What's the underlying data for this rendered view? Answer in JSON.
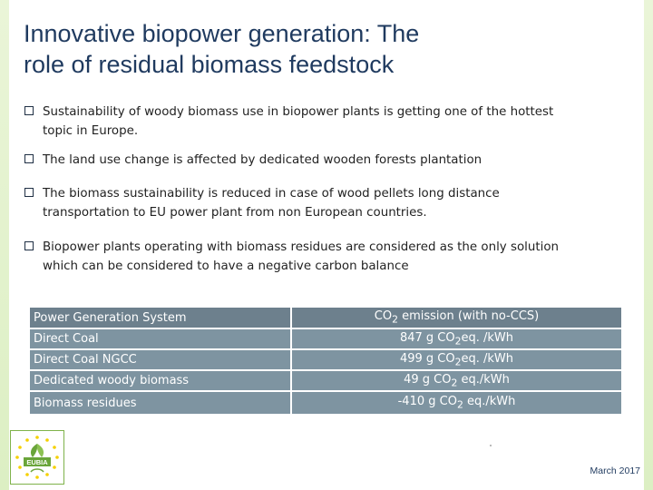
{
  "slide": {
    "title_line1": "Innovative biopower generation: The",
    "title_line2": "role of residual biomass feedstock",
    "bullets": [
      {
        "line1": "Sustainability of woody biomass use in biopower plants is getting one of the hottest",
        "line2": "topic in Europe."
      },
      {
        "line1": "The land use change is affected by dedicated wooden forests plantation",
        "line2": ""
      },
      {
        "line1": "The biomass sustainability is reduced in case of wood pellets long distance",
        "line2": "transportation to EU power plant from non European countries."
      },
      {
        "line1": "Biopower plants operating with biomass residues are considered as the only solution",
        "line2": "which can be considered to have a negative carbon balance"
      }
    ],
    "table": {
      "header": {
        "col1": "Power Generation System",
        "col2_pre": "CO",
        "col2_sub": "2",
        "col2_post": " emission  (with no-CCS)"
      },
      "rows": [
        {
          "system": "Direct Coal",
          "value_pre": "847 g CO",
          "value_sub": "2",
          "value_post": "eq. /kWh"
        },
        {
          "system": "Direct Coal NGCC",
          "value_pre": "499 g CO",
          "value_sub": "2",
          "value_post": "eq. /kWh"
        },
        {
          "system": "Dedicated woody biomass",
          "value_pre": "49 g CO",
          "value_sub": "2",
          "value_post": " eq./kWh"
        },
        {
          "system": "Biomass residues",
          "value_pre": "-410 g CO",
          "value_sub": "2",
          "value_post": " eq./kWh"
        }
      ]
    },
    "logo_text": "EUBIA",
    "date": "March 2017"
  },
  "colors": {
    "title": "#1f3a5f",
    "table_cell": "#7e94a1",
    "table_header": "#6d808d",
    "logo_green": "#6aa53a",
    "logo_yellow": "#f5d000",
    "accent_bar": "#dcefc3"
  },
  "icons": [
    "checkbox-bullet-icon",
    "eubia-logo"
  ]
}
